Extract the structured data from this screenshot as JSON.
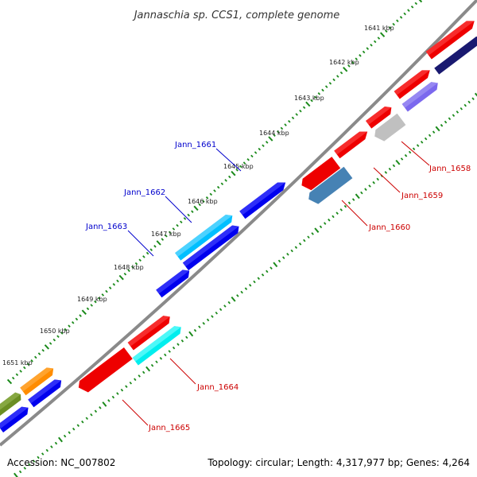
{
  "title": "Jannaschia sp. CCS1, complete genome",
  "footer": {
    "accession": "Accession: NC_007802",
    "summary": "Topology: circular; Length: 4,317,977 bp; Genes: 4,264"
  },
  "colors": {
    "background": "#ffffff",
    "backbone": "#808080",
    "ticks": "#1a8a1a",
    "forward_label": "#0000cc",
    "reverse_label": "#cc0000"
  },
  "kbp_labels": [
    "1641 kbp",
    "1642 kbp",
    "1643 kbp",
    "1644 kbp",
    "1645 kbp",
    "1646 kbp",
    "1647 kbp",
    "1648 kbp",
    "1649 kbp",
    "1650 kbp",
    "1651 kbp"
  ],
  "gene_labels": [
    {
      "name": "Jann_1658",
      "color": "#cc0000"
    },
    {
      "name": "Jann_1659",
      "color": "#cc0000"
    },
    {
      "name": "Jann_1660",
      "color": "#cc0000"
    },
    {
      "name": "Jann_1661",
      "color": "#0000cc"
    },
    {
      "name": "Jann_1662",
      "color": "#0000cc"
    },
    {
      "name": "Jann_1663",
      "color": "#0000cc"
    },
    {
      "name": "Jann_1664",
      "color": "#cc0000"
    },
    {
      "name": "Jann_1665",
      "color": "#cc0000"
    }
  ],
  "gene_colors": [
    "#ee0000",
    "#7b68ee",
    "#191970",
    "#c0c0c0",
    "#4682b4",
    "#0000ee",
    "#00bfff",
    "#00eeee",
    "#ff8c00",
    "#6b8e23"
  ]
}
